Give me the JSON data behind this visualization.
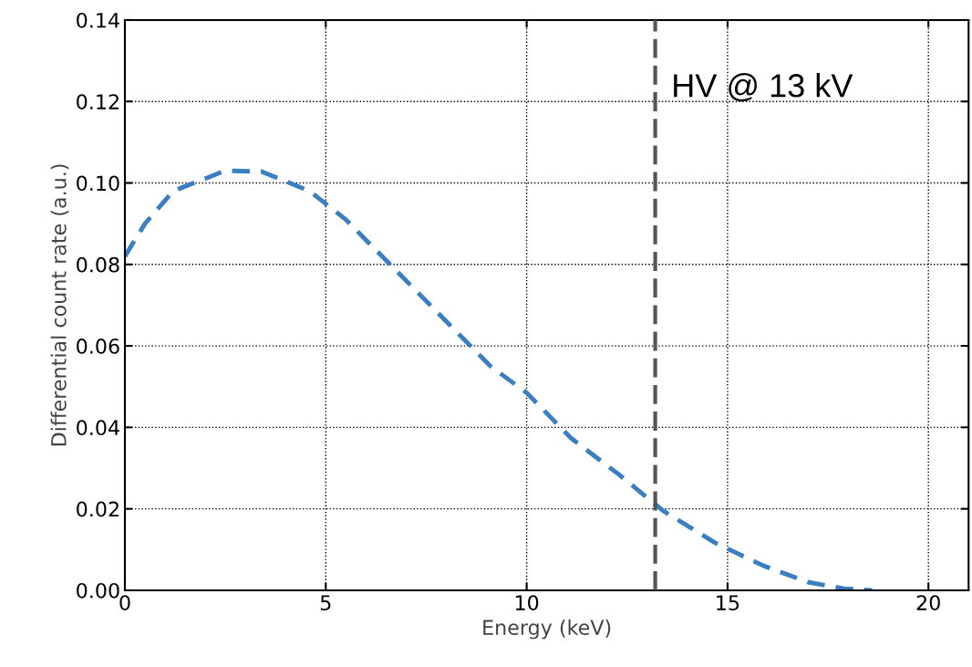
{
  "chart_data": {
    "type": "line",
    "xlabel": "Energy (keV)",
    "ylabel": "Differential count rate (a.u.)",
    "x": [
      0,
      0.5,
      1.2,
      2.5,
      3.4,
      4.6,
      5.5,
      6.6,
      8.0,
      9.1,
      10.0,
      11.1,
      12.3,
      13.4,
      14.7,
      15.9,
      17.0,
      17.9,
      18.6
    ],
    "series": [
      {
        "color": "#3a7fc1",
        "values": [
          0.082,
          0.09,
          0.098,
          0.103,
          0.1028,
          0.098,
          0.091,
          0.08,
          0.066,
          0.055,
          0.0485,
          0.0374,
          0.0284,
          0.0195,
          0.0116,
          0.006,
          0.002,
          0.0004,
          0.0
        ]
      }
    ],
    "xlim": [
      0,
      21
    ],
    "xticks": [
      0,
      5,
      10,
      15,
      20
    ],
    "ylim": [
      0,
      0.14
    ],
    "yticks": [
      {
        "value": 0,
        "label": "0.00"
      },
      {
        "value": 0.02,
        "label": "0.02"
      },
      {
        "value": 0.04,
        "label": "0.04"
      },
      {
        "value": 0.06,
        "label": "0.06"
      },
      {
        "value": 0.08,
        "label": "0.08"
      },
      {
        "value": 0.1,
        "label": "0.10"
      },
      {
        "value": 0.12,
        "label": "0.12"
      },
      {
        "value": 0.14,
        "label": "0.14"
      }
    ],
    "ref_lines": [
      {
        "axis": "x",
        "value": 13.2,
        "label": "HV @ 13 kV",
        "color": "#555555",
        "line_style": "dashed"
      }
    ],
    "grid": true,
    "line_style": "dashed",
    "marker": "none"
  }
}
